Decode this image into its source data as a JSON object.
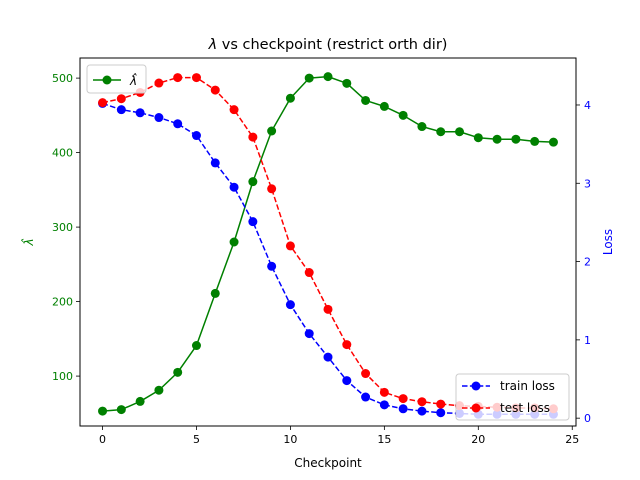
{
  "chart_data": {
    "type": "line",
    "title_prefix": "λ",
    "title_rest": " vs checkpoint (restrict orth dir)",
    "xlabel": "Checkpoint",
    "ylabel_left": "λ̂",
    "ylabel_right": "Loss",
    "xlim": [
      -1.2,
      25.2
    ],
    "ylim_left": [
      33,
      527
    ],
    "ylim_right": [
      -0.1,
      4.6
    ],
    "xticks": [
      0,
      5,
      10,
      15,
      20,
      25
    ],
    "yticks_left": [
      100,
      200,
      300,
      400,
      500
    ],
    "yticks_right": [
      0,
      1,
      2,
      3,
      4
    ],
    "colors": {
      "lambda": "#008000",
      "train": "#0000ff",
      "test": "#ff0000",
      "right_axis": "#0000ff",
      "left_axis": "#008000"
    },
    "x": [
      0,
      1,
      2,
      3,
      4,
      5,
      6,
      7,
      8,
      9,
      10,
      11,
      12,
      13,
      14,
      15,
      16,
      17,
      18,
      19,
      20,
      21,
      22,
      23,
      24
    ],
    "series": [
      {
        "name": "λ̂",
        "axis": "left",
        "style": "solid",
        "values": [
          53,
          55,
          66,
          81,
          105,
          141,
          211,
          280,
          361,
          429,
          473,
          500,
          502,
          493,
          470,
          462,
          450,
          435,
          428,
          428,
          420,
          418,
          418,
          415,
          414
        ]
      },
      {
        "name": "train loss",
        "axis": "right",
        "style": "dashed",
        "values": [
          4.02,
          3.94,
          3.9,
          3.84,
          3.76,
          3.61,
          3.26,
          2.95,
          2.51,
          1.94,
          1.45,
          1.08,
          0.78,
          0.48,
          0.27,
          0.17,
          0.12,
          0.09,
          0.07,
          0.06,
          0.05,
          0.05,
          0.05,
          0.05,
          0.05
        ]
      },
      {
        "name": "test loss",
        "axis": "right",
        "style": "dashed",
        "values": [
          4.03,
          4.08,
          4.16,
          4.28,
          4.35,
          4.35,
          4.19,
          3.94,
          3.59,
          2.93,
          2.2,
          1.86,
          1.39,
          0.94,
          0.57,
          0.33,
          0.25,
          0.21,
          0.18,
          0.16,
          0.15,
          0.14,
          0.13,
          0.13,
          0.12
        ]
      }
    ],
    "legend_left": {
      "placement": "upper-left",
      "entries": [
        "λ̂"
      ]
    },
    "legend_right": {
      "placement": "lower-right",
      "entries": [
        "train loss",
        "test loss"
      ]
    }
  }
}
